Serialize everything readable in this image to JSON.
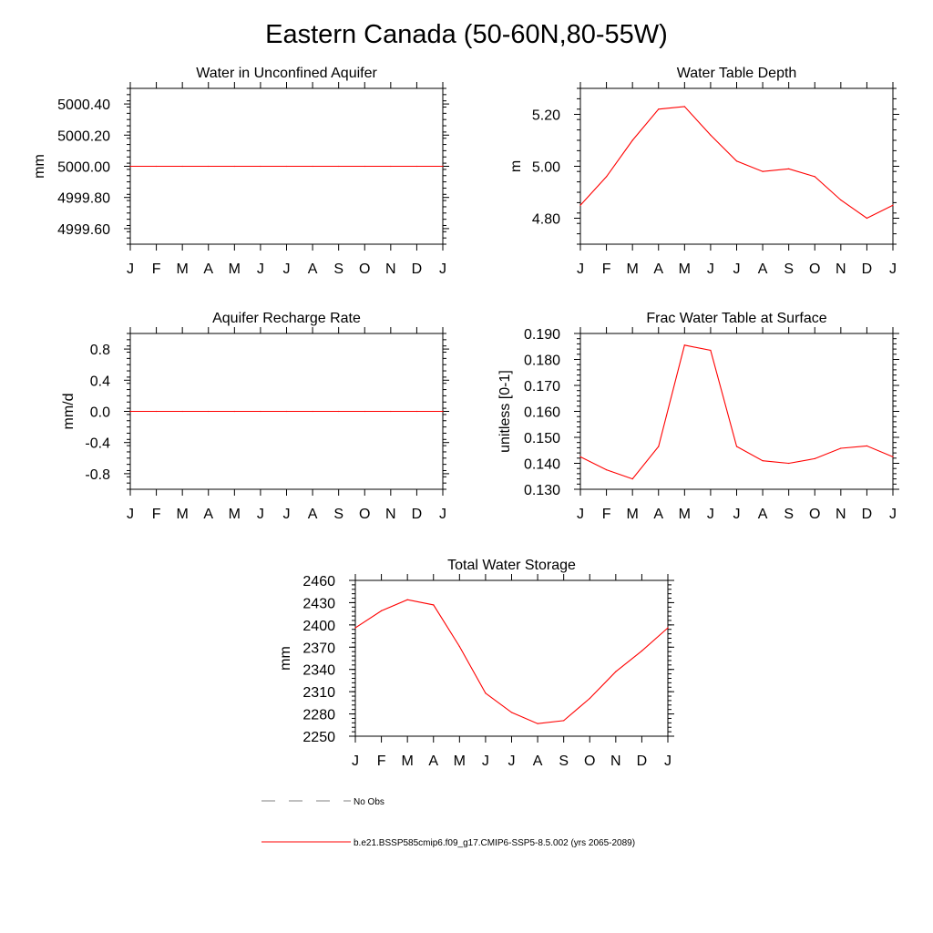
{
  "title": "Eastern Canada (50-60N,80-55W)",
  "colors": {
    "series": "#ff0000",
    "axis": "#000000",
    "obs": "#808080"
  },
  "legend": {
    "obs_label": "No Obs",
    "model_label": "b.e21.BSSP585cmip6.f09_g17.CMIP6-SSP5-8.5.002 (yrs 2065-2089)"
  },
  "chart_data": [
    {
      "type": "line",
      "title": "Water in Unconfined Aquifer",
      "ylabel": "mm",
      "x": [
        "J",
        "F",
        "M",
        "A",
        "M",
        "J",
        "J",
        "A",
        "S",
        "O",
        "N",
        "D",
        "J"
      ],
      "ylim": [
        4999.5,
        5000.5
      ],
      "yticks": [
        "5000.40",
        "5000.20",
        "5000.00",
        "4999.80",
        "4999.60"
      ],
      "ytick_values": [
        5000.4,
        5000.2,
        5000.0,
        4999.8,
        4999.6
      ],
      "values": [
        5000,
        5000,
        5000,
        5000,
        5000,
        5000,
        5000,
        5000,
        5000,
        5000,
        5000,
        5000,
        5000
      ]
    },
    {
      "type": "line",
      "title": "Water Table Depth",
      "ylabel": "m",
      "x": [
        "J",
        "F",
        "M",
        "A",
        "M",
        "J",
        "J",
        "A",
        "S",
        "O",
        "N",
        "D",
        "J"
      ],
      "ylim": [
        4.7,
        5.3
      ],
      "yticks": [
        "5.20",
        "5.00",
        "4.80"
      ],
      "ytick_values": [
        5.2,
        5.0,
        4.8
      ],
      "values": [
        4.85,
        4.96,
        5.1,
        5.22,
        5.23,
        5.12,
        5.02,
        4.98,
        4.99,
        4.96,
        4.87,
        4.8,
        4.85
      ]
    },
    {
      "type": "line",
      "title": "Aquifer Recharge Rate",
      "ylabel": "mm/d",
      "x": [
        "J",
        "F",
        "M",
        "A",
        "M",
        "J",
        "J",
        "A",
        "S",
        "O",
        "N",
        "D",
        "J"
      ],
      "ylim": [
        -1.0,
        1.0
      ],
      "yticks": [
        "0.8",
        "0.4",
        "0.0",
        "-0.4",
        "-0.8"
      ],
      "ytick_values": [
        0.8,
        0.4,
        0.0,
        -0.4,
        -0.8
      ],
      "values": [
        0,
        0,
        0,
        0,
        0,
        0,
        0,
        0,
        0,
        0,
        0,
        0,
        0
      ]
    },
    {
      "type": "line",
      "title": "Frac Water Table at Surface",
      "ylabel": "unitless [0-1]",
      "x": [
        "J",
        "F",
        "M",
        "A",
        "M",
        "J",
        "J",
        "A",
        "S",
        "O",
        "N",
        "D",
        "J"
      ],
      "ylim": [
        0.13,
        0.19
      ],
      "yticks": [
        "0.190",
        "0.180",
        "0.170",
        "0.160",
        "0.150",
        "0.140",
        "0.130"
      ],
      "ytick_values": [
        0.19,
        0.18,
        0.17,
        0.16,
        0.15,
        0.14,
        0.13
      ],
      "values": [
        0.1425,
        0.1375,
        0.134,
        0.1465,
        0.1855,
        0.1835,
        0.1465,
        0.141,
        0.14,
        0.1418,
        0.1458,
        0.1467,
        0.1425
      ]
    },
    {
      "type": "line",
      "title": "Total Water Storage",
      "ylabel": "mm",
      "x": [
        "J",
        "F",
        "M",
        "A",
        "M",
        "J",
        "J",
        "A",
        "S",
        "O",
        "N",
        "D",
        "J"
      ],
      "ylim": [
        2250,
        2460
      ],
      "yticks": [
        "2460",
        "2430",
        "2400",
        "2370",
        "2340",
        "2310",
        "2280",
        "2250"
      ],
      "ytick_values": [
        2460,
        2430,
        2400,
        2370,
        2340,
        2310,
        2280,
        2250
      ],
      "values": [
        2396,
        2419,
        2434,
        2427,
        2371,
        2308,
        2282,
        2267,
        2271,
        2301,
        2337,
        2365,
        2396
      ]
    }
  ]
}
